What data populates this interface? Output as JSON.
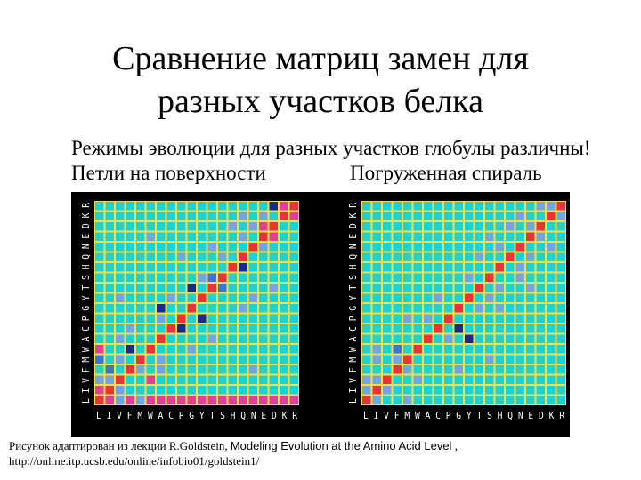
{
  "slide": {
    "title_line1": "Сравнение матриц замен для",
    "title_line2": "разных участков белка",
    "subtitle": "Режимы эволюции для разных участков глобулы различны!",
    "label_left": "Петли на поверхности",
    "label_right": "Погруженная спираль"
  },
  "matrices": {
    "axis_labels": "L I V F M W A C P G Y T S H Q N E D K R",
    "colors": {
      "background": "#000000",
      "grid": "#f2e04a",
      "base": "#1ed2d2",
      "light": "#6ea6e6",
      "medium": "#3a74d8",
      "dark": "#1a2a8c",
      "pink": "#e0409a",
      "red": "#e8323c",
      "axis_text": "#ffffff"
    },
    "left": {
      "cells": [
        [
          0,
          0,
          "red"
        ],
        [
          1,
          1,
          "red"
        ],
        [
          2,
          2,
          "red"
        ],
        [
          3,
          3,
          "red"
        ],
        [
          4,
          4,
          "red"
        ],
        [
          5,
          5,
          "red"
        ],
        [
          6,
          6,
          "red"
        ],
        [
          7,
          7,
          "red"
        ],
        [
          8,
          8,
          "red"
        ],
        [
          9,
          9,
          "red"
        ],
        [
          10,
          10,
          "red"
        ],
        [
          11,
          11,
          "red"
        ],
        [
          12,
          12,
          "red"
        ],
        [
          13,
          13,
          "red"
        ],
        [
          14,
          14,
          "red"
        ],
        [
          15,
          15,
          "red"
        ],
        [
          16,
          16,
          "red"
        ],
        [
          17,
          17,
          "red"
        ],
        [
          18,
          18,
          "red"
        ],
        [
          19,
          19,
          "red"
        ],
        [
          1,
          0,
          "pink"
        ],
        [
          0,
          1,
          "pink"
        ],
        [
          2,
          1,
          "light"
        ],
        [
          1,
          2,
          "light"
        ],
        [
          0,
          2,
          "light"
        ],
        [
          2,
          0,
          "light"
        ],
        [
          3,
          1,
          "medium"
        ],
        [
          3,
          4,
          "light"
        ],
        [
          4,
          2,
          "light"
        ],
        [
          0,
          3,
          "pink"
        ],
        [
          0,
          4,
          "light"
        ],
        [
          4,
          0,
          "medium"
        ],
        [
          5,
          3,
          "dark"
        ],
        [
          5,
          0,
          "pink"
        ],
        [
          0,
          5,
          "pink"
        ],
        [
          2,
          5,
          "pink"
        ],
        [
          3,
          6,
          "light"
        ],
        [
          4,
          6,
          "light"
        ],
        [
          6,
          2,
          "light"
        ],
        [
          7,
          3,
          "light"
        ],
        [
          7,
          8,
          "dark"
        ],
        [
          8,
          6,
          "light"
        ],
        [
          9,
          6,
          "dark"
        ],
        [
          8,
          10,
          "dark"
        ],
        [
          10,
          7,
          "light"
        ],
        [
          11,
          9,
          "dark"
        ],
        [
          11,
          12,
          "medium"
        ],
        [
          12,
          11,
          "medium"
        ],
        [
          12,
          10,
          "light"
        ],
        [
          13,
          14,
          "dark"
        ],
        [
          14,
          12,
          "light"
        ],
        [
          15,
          16,
          "light"
        ],
        [
          16,
          17,
          "pink"
        ],
        [
          17,
          16,
          "pink"
        ],
        [
          16,
          14,
          "light"
        ],
        [
          18,
          19,
          "pink"
        ],
        [
          19,
          18,
          "pink"
        ],
        [
          19,
          17,
          "dark"
        ],
        [
          17,
          15,
          "light"
        ],
        [
          18,
          16,
          "light"
        ],
        [
          0,
          18,
          "pink"
        ],
        [
          0,
          19,
          "pink"
        ],
        [
          0,
          17,
          "pink"
        ],
        [
          0,
          16,
          "pink"
        ],
        [
          0,
          15,
          "pink"
        ],
        [
          0,
          14,
          "pink"
        ],
        [
          0,
          13,
          "pink"
        ],
        [
          0,
          12,
          "pink"
        ],
        [
          0,
          11,
          "pink"
        ],
        [
          0,
          10,
          "pink"
        ],
        [
          0,
          9,
          "pink"
        ],
        [
          0,
          8,
          "pink"
        ],
        [
          0,
          7,
          "pink"
        ],
        [
          0,
          6,
          "pink"
        ],
        [
          5,
          9,
          "light"
        ],
        [
          6,
          11,
          "light"
        ],
        [
          9,
          14,
          "light"
        ],
        [
          10,
          15,
          "light"
        ],
        [
          11,
          17,
          "light"
        ],
        [
          14,
          8,
          "light"
        ],
        [
          15,
          11,
          "light"
        ],
        [
          18,
          14,
          "light"
        ],
        [
          3,
          15,
          "light"
        ],
        [
          16,
          5,
          "light"
        ],
        [
          10,
          2,
          "light"
        ],
        [
          17,
          13,
          "light"
        ]
      ]
    },
    "right": {
      "cells": [
        [
          0,
          0,
          "red"
        ],
        [
          1,
          1,
          "red"
        ],
        [
          2,
          2,
          "red"
        ],
        [
          3,
          3,
          "red"
        ],
        [
          4,
          4,
          "red"
        ],
        [
          5,
          5,
          "red"
        ],
        [
          6,
          6,
          "red"
        ],
        [
          7,
          7,
          "red"
        ],
        [
          8,
          8,
          "red"
        ],
        [
          9,
          9,
          "red"
        ],
        [
          10,
          10,
          "red"
        ],
        [
          11,
          11,
          "red"
        ],
        [
          12,
          12,
          "red"
        ],
        [
          13,
          13,
          "red"
        ],
        [
          14,
          14,
          "red"
        ],
        [
          15,
          15,
          "red"
        ],
        [
          16,
          16,
          "red"
        ],
        [
          17,
          17,
          "red"
        ],
        [
          18,
          18,
          "red"
        ],
        [
          19,
          19,
          "red"
        ],
        [
          1,
          2,
          "light"
        ],
        [
          2,
          1,
          "light"
        ],
        [
          0,
          1,
          "light"
        ],
        [
          1,
          0,
          "light"
        ],
        [
          3,
          4,
          "light"
        ],
        [
          4,
          3,
          "light"
        ],
        [
          2,
          0,
          "light"
        ],
        [
          4,
          1,
          "light"
        ],
        [
          5,
          3,
          "medium"
        ],
        [
          6,
          8,
          "light"
        ],
        [
          8,
          6,
          "light"
        ],
        [
          7,
          9,
          "dark"
        ],
        [
          9,
          11,
          "light"
        ],
        [
          10,
          12,
          "light"
        ],
        [
          11,
          13,
          "light"
        ],
        [
          12,
          10,
          "light"
        ],
        [
          13,
          15,
          "light"
        ],
        [
          14,
          16,
          "light"
        ],
        [
          15,
          13,
          "light"
        ],
        [
          16,
          17,
          "light"
        ],
        [
          17,
          16,
          "light"
        ],
        [
          18,
          19,
          "light"
        ],
        [
          19,
          18,
          "light"
        ],
        [
          19,
          17,
          "light"
        ],
        [
          2,
          5,
          "light"
        ],
        [
          8,
          4,
          "light"
        ],
        [
          6,
          10,
          "dark"
        ],
        [
          9,
          13,
          "light"
        ],
        [
          12,
          15,
          "light"
        ],
        [
          15,
          18,
          "light"
        ],
        [
          17,
          14,
          "light"
        ],
        [
          3,
          9,
          "light"
        ],
        [
          14,
          11,
          "light"
        ],
        [
          10,
          7,
          "light"
        ],
        [
          11,
          16,
          "light"
        ],
        [
          16,
          12,
          "light"
        ],
        [
          5,
          1,
          "light"
        ],
        [
          0,
          4,
          "light"
        ],
        [
          18,
          15,
          "light"
        ],
        [
          4,
          12,
          "light"
        ]
      ]
    }
  },
  "caption": {
    "part1": "Рисунок адаптирован из лекции R.Goldstein, ",
    "part2": "Modeling Evolution at the Amino Acid Level",
    "part3": " , http://online.itp.ucsb.edu/online/infobio01/goldstein1/"
  }
}
